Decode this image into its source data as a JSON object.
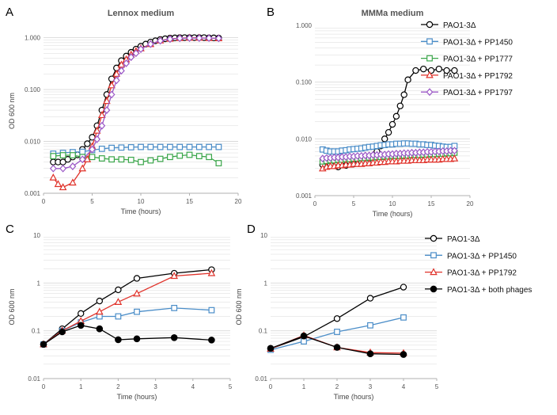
{
  "colors": {
    "black": "#000000",
    "blue": "#4a8dc8",
    "green": "#3aa64a",
    "red": "#e0322a",
    "purple": "#9b58c6",
    "grid": "#d9d9d9",
    "axis": "#b0b0b0"
  },
  "legend_top": [
    "PAO1-3Δ",
    "PAO1-3Δ + PP1450",
    "PAO1-3Δ + PP1777",
    "PAO1-3Δ + PP1792",
    "PAO1-3Δ + PP1797"
  ],
  "legend_bottom": [
    "PAO1-3Δ",
    "PAO1-3Δ + PP1450",
    "PAO1-3Δ + PP1792",
    "PAO1-3Δ + both phages"
  ],
  "chart_data": [
    {
      "panel_label": "A",
      "type": "line",
      "title": "Lennox medium",
      "xlabel": "Time (hours)",
      "ylabel": "OD 600 nm",
      "xlim": [
        0,
        20
      ],
      "ylim": [
        0.001,
        1.5
      ],
      "y_scale": "log",
      "xticks": [
        "0",
        "5",
        "10",
        "15",
        "20"
      ],
      "yticks": [
        "0.001",
        "0.010",
        "0.100",
        "1.000"
      ],
      "grid": true,
      "series": [
        {
          "name": "PAO1-3Δ",
          "color": "#000000",
          "marker": "circle",
          "x": [
            1,
            1.5,
            2,
            2.5,
            3,
            3.5,
            4,
            4.5,
            5,
            5.5,
            6,
            6.5,
            7,
            7.5,
            8,
            8.5,
            9,
            9.5,
            10,
            10.5,
            11,
            11.5,
            12,
            12.5,
            13,
            13.5,
            14,
            14.5,
            15,
            15.5,
            16,
            16.5,
            17,
            17.5,
            18
          ],
          "y": [
            0.004,
            0.004,
            0.004,
            0.0045,
            0.005,
            0.0055,
            0.007,
            0.009,
            0.012,
            0.02,
            0.04,
            0.08,
            0.16,
            0.26,
            0.36,
            0.44,
            0.52,
            0.6,
            0.68,
            0.75,
            0.82,
            0.87,
            0.92,
            0.95,
            0.98,
            0.99,
            1.0,
            1.0,
            1.0,
            1.0,
            1.0,
            1.0,
            0.99,
            0.99,
            0.98
          ]
        },
        {
          "name": "PAO1-3Δ + PP1450",
          "color": "#4a8dc8",
          "marker": "square",
          "x": [
            1,
            2,
            3,
            4,
            5,
            6,
            7,
            8,
            9,
            10,
            11,
            12,
            13,
            14,
            15,
            16,
            17,
            18
          ],
          "y": [
            0.0058,
            0.006,
            0.0062,
            0.0063,
            0.0068,
            0.0072,
            0.0075,
            0.0076,
            0.0077,
            0.0078,
            0.0078,
            0.0078,
            0.0078,
            0.0078,
            0.0078,
            0.0078,
            0.0078,
            0.0078
          ]
        },
        {
          "name": "PAO1-3Δ + PP1777",
          "color": "#3aa64a",
          "marker": "square",
          "x": [
            1,
            2,
            3,
            4,
            5,
            6,
            7,
            8,
            9,
            10,
            11,
            12,
            13,
            14,
            15,
            16,
            17,
            18
          ],
          "y": [
            0.0052,
            0.0054,
            0.0054,
            0.005,
            0.005,
            0.0047,
            0.0045,
            0.0045,
            0.0044,
            0.004,
            0.0043,
            0.0046,
            0.005,
            0.0053,
            0.0055,
            0.0052,
            0.005,
            0.0038
          ]
        },
        {
          "name": "PAO1-3Δ + PP1792",
          "color": "#e0322a",
          "marker": "triangle",
          "x": [
            1,
            1.5,
            2,
            3,
            4,
            4.5,
            5,
            5.5,
            6,
            6.5,
            7,
            7.5,
            8,
            8.5,
            9,
            9.5,
            10,
            11,
            12,
            13,
            14,
            15,
            16,
            17,
            18
          ],
          "y": [
            0.002,
            0.0015,
            0.0013,
            0.0016,
            0.003,
            0.0045,
            0.008,
            0.016,
            0.032,
            0.06,
            0.12,
            0.2,
            0.3,
            0.38,
            0.47,
            0.55,
            0.62,
            0.75,
            0.88,
            0.95,
            0.98,
            0.99,
            0.99,
            0.98,
            0.97
          ]
        },
        {
          "name": "PAO1-3Δ + PP1797",
          "color": "#9b58c6",
          "marker": "diamond",
          "x": [
            1,
            2,
            3,
            4,
            5,
            5.5,
            6,
            6.5,
            7,
            7.5,
            8,
            8.5,
            9,
            9.5,
            10,
            11,
            12,
            13,
            14,
            15,
            16,
            17,
            18
          ],
          "y": [
            0.003,
            0.003,
            0.0033,
            0.0045,
            0.007,
            0.011,
            0.02,
            0.04,
            0.08,
            0.15,
            0.23,
            0.32,
            0.42,
            0.5,
            0.6,
            0.75,
            0.87,
            0.94,
            0.97,
            0.98,
            0.98,
            0.98,
            0.97
          ]
        }
      ]
    },
    {
      "panel_label": "B",
      "type": "line",
      "title": "MMMa medium",
      "xlabel": "Time (hours)",
      "ylabel": "",
      "xlim": [
        0,
        20
      ],
      "ylim": [
        0.001,
        1
      ],
      "y_scale": "log",
      "xticks": [
        "0",
        "5",
        "10",
        "15",
        "20"
      ],
      "yticks": [
        "0.001",
        "0.010",
        "0.100",
        "1.000"
      ],
      "grid": true,
      "series": [
        {
          "name": "PAO1-3Δ",
          "color": "#000000",
          "marker": "circle",
          "x": [
            1,
            2,
            3,
            4,
            5,
            6,
            7,
            7.5,
            8,
            8.5,
            9,
            9.5,
            10,
            10.5,
            11,
            11.5,
            12,
            13,
            14,
            15,
            16,
            17,
            18
          ],
          "y": [
            0.0035,
            0.0035,
            0.0032,
            0.0034,
            0.0036,
            0.004,
            0.0045,
            0.005,
            0.006,
            0.0075,
            0.01,
            0.013,
            0.018,
            0.025,
            0.038,
            0.06,
            0.11,
            0.16,
            0.17,
            0.16,
            0.17,
            0.16,
            0.16
          ]
        },
        {
          "name": "PAO1-3Δ + PP1450",
          "color": "#4a8dc8",
          "marker": "square",
          "x": [
            1,
            1.5,
            2,
            2.5,
            3,
            3.5,
            4,
            4.5,
            5,
            5.5,
            6,
            6.5,
            7,
            7.5,
            8,
            8.5,
            9,
            9.5,
            10,
            10.5,
            11,
            11.5,
            12,
            12.5,
            13,
            13.5,
            14,
            14.5,
            15,
            15.5,
            16,
            16.5,
            17,
            17.5,
            18
          ],
          "y": [
            0.0065,
            0.0062,
            0.006,
            0.006,
            0.006,
            0.0062,
            0.0063,
            0.0065,
            0.0066,
            0.0067,
            0.0068,
            0.007,
            0.0072,
            0.0073,
            0.0075,
            0.0077,
            0.0078,
            0.008,
            0.008,
            0.0082,
            0.0082,
            0.0083,
            0.0083,
            0.0082,
            0.0082,
            0.008,
            0.008,
            0.0078,
            0.0078,
            0.0076,
            0.0075,
            0.0073,
            0.0072,
            0.0072,
            0.0075
          ]
        },
        {
          "name": "PAO1-3Δ + PP1777",
          "color": "#3aa64a",
          "marker": "square",
          "x": [
            1,
            1.5,
            2,
            2.5,
            3,
            3.5,
            4,
            4.5,
            5,
            5.5,
            6,
            6.5,
            7,
            7.5,
            8,
            8.5,
            9,
            9.5,
            10,
            10.5,
            11,
            11.5,
            12,
            12.5,
            13,
            13.5,
            14,
            14.5,
            15,
            15.5,
            16,
            16.5,
            17,
            17.5,
            18
          ],
          "y": [
            0.004,
            0.0041,
            0.0042,
            0.0042,
            0.0043,
            0.0043,
            0.0044,
            0.0044,
            0.0045,
            0.0045,
            0.0046,
            0.0046,
            0.0047,
            0.0047,
            0.0048,
            0.0048,
            0.0049,
            0.0049,
            0.005,
            0.005,
            0.005,
            0.0051,
            0.0051,
            0.0052,
            0.0052,
            0.0052,
            0.0053,
            0.0053,
            0.0054,
            0.0054,
            0.0055,
            0.0055,
            0.0056,
            0.0056,
            0.0057
          ]
        },
        {
          "name": "PAO1-3Δ + PP1792",
          "color": "#e0322a",
          "marker": "triangle",
          "x": [
            1,
            1.5,
            2,
            2.5,
            3,
            3.5,
            4,
            4.5,
            5,
            5.5,
            6,
            6.5,
            7,
            7.5,
            8,
            8.5,
            9,
            9.5,
            10,
            10.5,
            11,
            11.5,
            12,
            12.5,
            13,
            13.5,
            14,
            14.5,
            15,
            15.5,
            16,
            16.5,
            17,
            17.5,
            18
          ],
          "y": [
            0.003,
            0.0032,
            0.0033,
            0.0033,
            0.0034,
            0.0034,
            0.0035,
            0.0035,
            0.0036,
            0.0036,
            0.0036,
            0.0037,
            0.0037,
            0.0038,
            0.0038,
            0.0039,
            0.0039,
            0.004,
            0.004,
            0.004,
            0.0041,
            0.0041,
            0.0041,
            0.0042,
            0.0042,
            0.0042,
            0.0042,
            0.0043,
            0.0043,
            0.0043,
            0.0043,
            0.0044,
            0.0044,
            0.0044,
            0.0045
          ]
        },
        {
          "name": "PAO1-3Δ + PP1797",
          "color": "#9b58c6",
          "marker": "diamond",
          "x": [
            1,
            1.5,
            2,
            2.5,
            3,
            3.5,
            4,
            4.5,
            5,
            5.5,
            6,
            6.5,
            7,
            7.5,
            8,
            8.5,
            9,
            9.5,
            10,
            10.5,
            11,
            11.5,
            12,
            12.5,
            13,
            13.5,
            14,
            14.5,
            15,
            15.5,
            16,
            16.5,
            17,
            17.5,
            18
          ],
          "y": [
            0.0045,
            0.0046,
            0.0046,
            0.0047,
            0.0047,
            0.0048,
            0.0048,
            0.0049,
            0.0049,
            0.005,
            0.005,
            0.0051,
            0.0051,
            0.0052,
            0.0052,
            0.0053,
            0.0053,
            0.0054,
            0.0054,
            0.0055,
            0.0055,
            0.0056,
            0.0056,
            0.0057,
            0.0057,
            0.0058,
            0.0058,
            0.0059,
            0.0059,
            0.006,
            0.006,
            0.0061,
            0.0061,
            0.0062,
            0.0062
          ]
        }
      ]
    },
    {
      "panel_label": "C",
      "type": "line",
      "title": "",
      "xlabel": "Time (hours)",
      "ylabel": "OD 600 nm",
      "xlim": [
        0,
        5
      ],
      "ylim": [
        0.01,
        10
      ],
      "y_scale": "log",
      "xticks": [
        "0",
        "1",
        "2",
        "3",
        "4",
        "5"
      ],
      "yticks": [
        "0.01",
        "0.1",
        "1",
        "10"
      ],
      "grid": true,
      "series": [
        {
          "name": "PAO1-3Δ",
          "color": "#000000",
          "marker": "circle",
          "x": [
            0,
            0.5,
            1,
            1.5,
            2,
            2.5,
            3.5,
            4.5
          ],
          "y": [
            0.052,
            0.11,
            0.23,
            0.42,
            0.72,
            1.25,
            1.6,
            1.9
          ]
        },
        {
          "name": "PAO1-3Δ + PP1450",
          "color": "#4a8dc8",
          "marker": "square",
          "x": [
            0,
            0.5,
            1,
            1.5,
            2,
            2.5,
            3.5,
            4.5
          ],
          "y": [
            0.052,
            0.1,
            0.15,
            0.2,
            0.2,
            0.25,
            0.3,
            0.27
          ]
        },
        {
          "name": "PAO1-3Δ + PP1792",
          "color": "#e0322a",
          "marker": "triangle",
          "x": [
            0,
            0.5,
            1,
            1.5,
            2,
            2.5,
            3.5,
            4.5
          ],
          "y": [
            0.052,
            0.1,
            0.16,
            0.25,
            0.4,
            0.6,
            1.4,
            1.6
          ]
        },
        {
          "name": "PAO1-3Δ + both phages",
          "color": "#000000",
          "marker": "filled-circle",
          "x": [
            0,
            0.5,
            1,
            1.5,
            2,
            2.5,
            3.5,
            4.5
          ],
          "y": [
            0.052,
            0.095,
            0.13,
            0.11,
            0.065,
            0.068,
            0.072,
            0.064
          ]
        }
      ]
    },
    {
      "panel_label": "D",
      "type": "line",
      "title": "",
      "xlabel": "Time (hours)",
      "ylabel": "OD 600 nm",
      "xlim": [
        0,
        5
      ],
      "ylim": [
        0.01,
        10
      ],
      "y_scale": "log",
      "xticks": [
        "0",
        "1",
        "2",
        "3",
        "4",
        "5"
      ],
      "yticks": [
        "0.01",
        "0.1",
        "1",
        "10"
      ],
      "grid": true,
      "series": [
        {
          "name": "PAO1-3Δ",
          "color": "#000000",
          "marker": "circle",
          "x": [
            0,
            1,
            2,
            3,
            4
          ],
          "y": [
            0.042,
            0.075,
            0.18,
            0.48,
            0.82
          ]
        },
        {
          "name": "PAO1-3Δ + PP1450",
          "color": "#4a8dc8",
          "marker": "square",
          "x": [
            0,
            1,
            2,
            3,
            4
          ],
          "y": [
            0.04,
            0.06,
            0.095,
            0.13,
            0.19
          ]
        },
        {
          "name": "PAO1-3Δ + PP1792",
          "color": "#e0322a",
          "marker": "triangle",
          "x": [
            0,
            1,
            2,
            3,
            4
          ],
          "y": [
            0.042,
            0.08,
            0.045,
            0.035,
            0.034
          ]
        },
        {
          "name": "PAO1-3Δ + both phages",
          "color": "#000000",
          "marker": "filled-circle",
          "x": [
            0,
            1,
            2,
            3,
            4
          ],
          "y": [
            0.043,
            0.078,
            0.045,
            0.033,
            0.032
          ]
        }
      ]
    }
  ]
}
